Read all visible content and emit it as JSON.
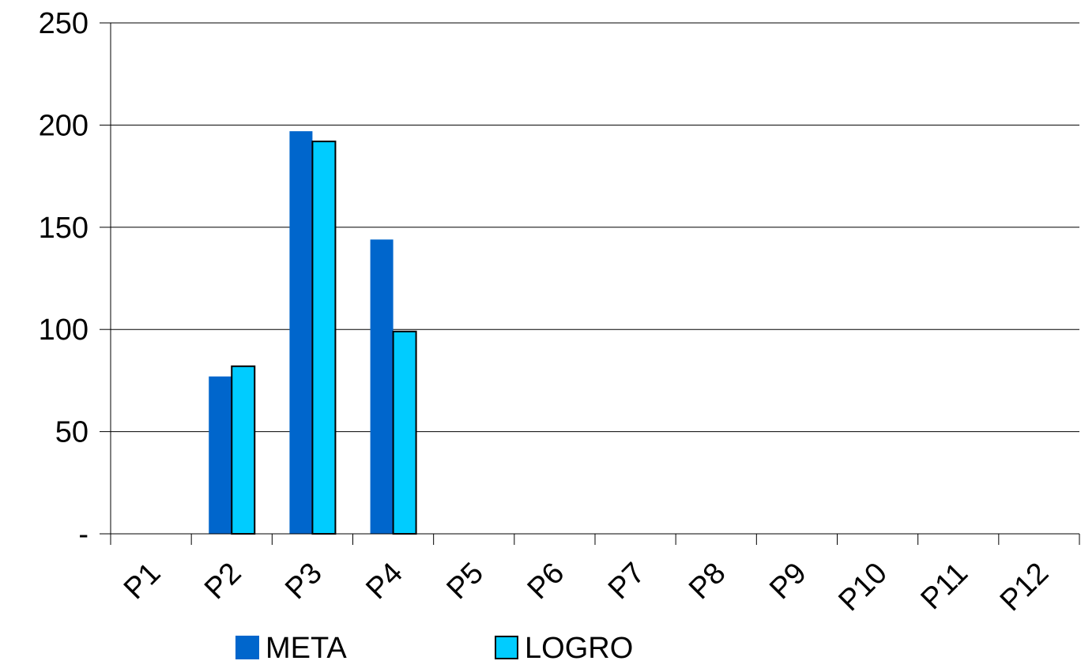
{
  "chart_data": {
    "type": "bar",
    "categories": [
      "P1",
      "P2",
      "P3",
      "P4",
      "P5",
      "P6",
      "P7",
      "P8",
      "P9",
      "P10",
      "P11",
      "P12"
    ],
    "series": [
      {
        "name": "META",
        "values": [
          null,
          77,
          197,
          144,
          null,
          null,
          null,
          null,
          null,
          null,
          null,
          null
        ],
        "color": "#0066CC"
      },
      {
        "name": "LOGRO",
        "values": [
          null,
          82,
          192,
          99,
          null,
          null,
          null,
          null,
          null,
          null,
          null,
          null
        ],
        "color": "#00CCFF"
      }
    ],
    "ylim": [
      0,
      250
    ],
    "yticks": [
      {
        "value": 0,
        "label": "-"
      },
      {
        "value": 50,
        "label": "50"
      },
      {
        "value": 100,
        "label": "100"
      },
      {
        "value": 150,
        "label": "150"
      },
      {
        "value": 200,
        "label": "200"
      },
      {
        "value": 250,
        "label": "250"
      }
    ],
    "grid": true,
    "legend": "bottom-left",
    "title": "",
    "xlabel": "",
    "ylabel": ""
  }
}
